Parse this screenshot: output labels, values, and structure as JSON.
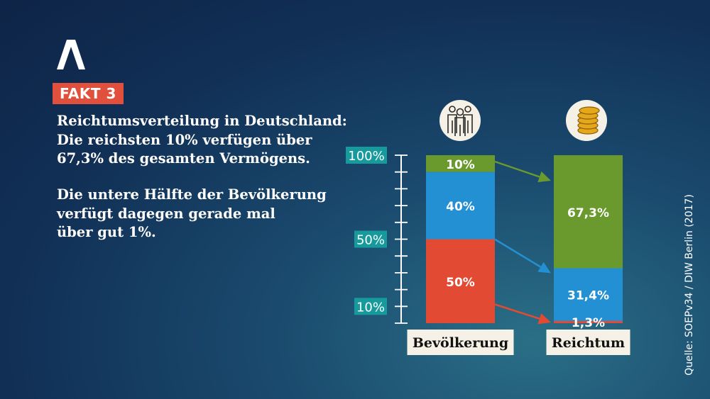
{
  "fakt_label": "FAKT 3",
  "text_lines_1": [
    "Reichtumsverteilung in Deutschland:",
    "Die reichsten 10% verfügen über",
    "67,3% des gesamten Vermögens."
  ],
  "text_lines_2": [
    "Die untere Hälfte der Bevölkerung",
    "verfügt dagegen gerade mal",
    "über gut 1%."
  ],
  "source": "Quelle: SOEPv34 / DIW Berlin (2017)",
  "colors": {
    "red": "#e24a33",
    "blue": "#2490d4",
    "green": "#6a9a2d",
    "teal": "#169a9c",
    "bg": "#122f55"
  },
  "icons": {
    "population": "people-icon",
    "wealth": "coins-icon"
  },
  "chart_data": {
    "type": "bar",
    "stacked": true,
    "title": "",
    "categories": [
      "Bevölkerung",
      "Reichtum"
    ],
    "series": [
      {
        "color": "#e24a33",
        "values": [
          50,
          1.3
        ],
        "labels": [
          "50%",
          "1,3%"
        ]
      },
      {
        "color": "#2490d4",
        "values": [
          40,
          31.4
        ],
        "labels": [
          "40%",
          "31,4%"
        ]
      },
      {
        "color": "#6a9a2d",
        "values": [
          10,
          67.3
        ],
        "labels": [
          "10%",
          "67,3%"
        ]
      }
    ],
    "y_tick_labels": [
      {
        "value": 10,
        "label": "10%"
      },
      {
        "value": 50,
        "label": "50%"
      },
      {
        "value": 100,
        "label": "100%"
      }
    ],
    "ylim": [
      0,
      100
    ],
    "y_minor_ticks": 10,
    "arrows": "each population share points to its share of wealth",
    "grid": false
  }
}
